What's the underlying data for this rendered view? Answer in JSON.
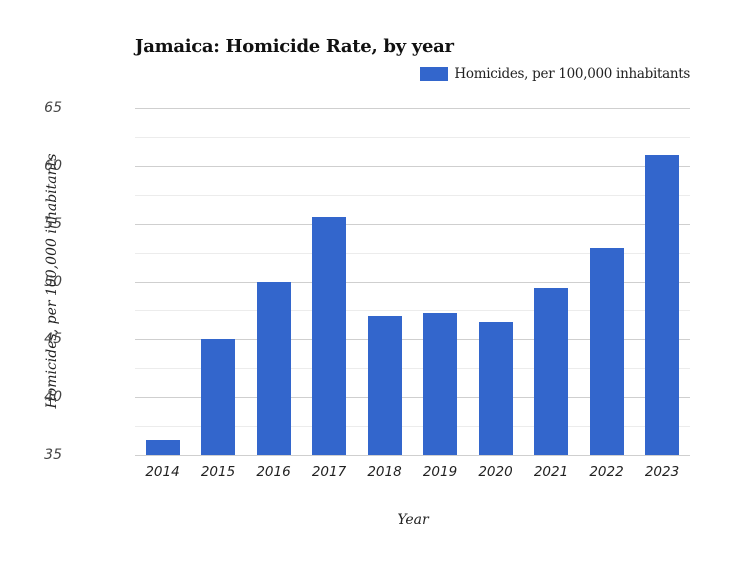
{
  "chart_data": {
    "type": "bar",
    "title": "Jamaica: Homicide Rate, by year",
    "xlabel": "Year",
    "ylabel": "Homicides, per 100,000 inhabitants",
    "categories": [
      "2014",
      "2015",
      "2016",
      "2017",
      "2018",
      "2019",
      "2020",
      "2021",
      "2022",
      "2023"
    ],
    "series": [
      {
        "name": "Homicides, per 100,000 inhabitants",
        "color": "#3366cc",
        "values": [
          36.3,
          45.0,
          50.0,
          55.6,
          47.0,
          47.3,
          46.5,
          49.4,
          52.9,
          60.9
        ]
      }
    ],
    "ylim": [
      35,
      65
    ],
    "yticks": [
      "35",
      "40",
      "45",
      "50",
      "55",
      "60",
      "65"
    ],
    "minor_gridlines": true,
    "grid": true,
    "legend_position": "top-right"
  },
  "colors": {
    "bar": "#3366cc",
    "grid_major": "#cfcfcf",
    "grid_minor": "#ececec"
  }
}
